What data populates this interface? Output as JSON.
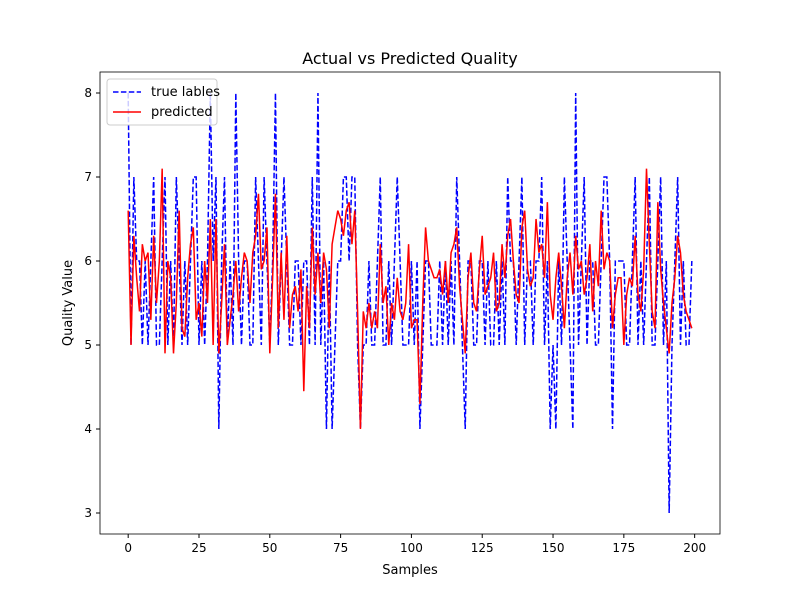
{
  "chart_data": {
    "type": "line",
    "title": "Actual vs Predicted Quality",
    "x_label": "Samples",
    "y_label": "Quality Value",
    "x": [
      0,
      1,
      2,
      3,
      4,
      5,
      6,
      7,
      8,
      9,
      10,
      11,
      12,
      13,
      14,
      15,
      16,
      17,
      18,
      19,
      20,
      21,
      22,
      23,
      24,
      25,
      26,
      27,
      28,
      29,
      30,
      31,
      32,
      33,
      34,
      35,
      36,
      37,
      38,
      39,
      40,
      41,
      42,
      43,
      44,
      45,
      46,
      47,
      48,
      49,
      50,
      51,
      52,
      53,
      54,
      55,
      56,
      57,
      58,
      59,
      60,
      61,
      62,
      63,
      64,
      65,
      66,
      67,
      68,
      69,
      70,
      71,
      72,
      73,
      74,
      75,
      76,
      77,
      78,
      79,
      80,
      81,
      82,
      83,
      84,
      85,
      86,
      87,
      88,
      89,
      90,
      91,
      92,
      93,
      94,
      95,
      96,
      97,
      98,
      99,
      100,
      101,
      102,
      103,
      104,
      105,
      106,
      107,
      108,
      109,
      110,
      111,
      112,
      113,
      114,
      115,
      116,
      117,
      118,
      119,
      120,
      121,
      122,
      123,
      124,
      125,
      126,
      127,
      128,
      129,
      130,
      131,
      132,
      133,
      134,
      135,
      136,
      137,
      138,
      139,
      140,
      141,
      142,
      143,
      144,
      145,
      146,
      147,
      148,
      149,
      150,
      151,
      152,
      153,
      154,
      155,
      156,
      157,
      158,
      159,
      160,
      161,
      162,
      163,
      164,
      165,
      166,
      167,
      168,
      169,
      170,
      171,
      172,
      173,
      174,
      175,
      176,
      177,
      178,
      179,
      180,
      181,
      182,
      183,
      184,
      185,
      186,
      187,
      188,
      189,
      190,
      191,
      192,
      193,
      194,
      195,
      196,
      197,
      198,
      199
    ],
    "series": [
      {
        "name": "true lables",
        "color": "#0000ff",
        "style": "dashed",
        "values": [
          8,
          5,
          7,
          6,
          6,
          5,
          6,
          5,
          6,
          7,
          5,
          5,
          6,
          7,
          5,
          6,
          5,
          7,
          6,
          5,
          6,
          5,
          6,
          7,
          7,
          5,
          6,
          5,
          6,
          8,
          6,
          7,
          4,
          6,
          7,
          5,
          6,
          5,
          8,
          6,
          5,
          6,
          6,
          5,
          5,
          7,
          6,
          5,
          7,
          6,
          5,
          6,
          8,
          5,
          6,
          7,
          6,
          5,
          5,
          6,
          6,
          5,
          6,
          6,
          5,
          7,
          5,
          8,
          5,
          6,
          4,
          6,
          4,
          5,
          6,
          6,
          7,
          7,
          6,
          7,
          7,
          5,
          4,
          5,
          5,
          6,
          5,
          5,
          6,
          7,
          5,
          5,
          6,
          5,
          6,
          7,
          6,
          5,
          5,
          5,
          6,
          5,
          6,
          4,
          5,
          6,
          6,
          5,
          5,
          5,
          6,
          5,
          6,
          5,
          6,
          5,
          7,
          6,
          5,
          4,
          6,
          6,
          5,
          5,
          6,
          6,
          5,
          6,
          5,
          5,
          6,
          5,
          6,
          5,
          7,
          6,
          6,
          5,
          6,
          7,
          5,
          6,
          6,
          5,
          6,
          6,
          7,
          5,
          6,
          4,
          5,
          4,
          6,
          5,
          7,
          6,
          5,
          4,
          8,
          5,
          6,
          7,
          5,
          6,
          6,
          5,
          5,
          6,
          7,
          7,
          6,
          4,
          6,
          6,
          6,
          6,
          5,
          5,
          6,
          7,
          5,
          6,
          5,
          6,
          7,
          5,
          5,
          6,
          7,
          5,
          6,
          3,
          5,
          6,
          7,
          5,
          6,
          5,
          5,
          6
        ]
      },
      {
        "name": "predicted",
        "color": "#ff0000",
        "style": "solid",
        "values": [
          6.6,
          5.0,
          6.3,
          5.8,
          5.4,
          6.2,
          6.0,
          6.1,
          5.3,
          6.3,
          5.5,
          6.0,
          7.1,
          4.9,
          6.0,
          5.8,
          4.9,
          5.5,
          6.6,
          5.2,
          5.1,
          5.8,
          6.2,
          6.4,
          5.3,
          5.5,
          5.1,
          6.0,
          5.5,
          6.5,
          5.0,
          6.5,
          4.9,
          5.5,
          6.2,
          5.0,
          5.3,
          5.6,
          6.0,
          5.4,
          5.8,
          6.1,
          6.0,
          5.5,
          6.1,
          6.3,
          6.8,
          5.9,
          6.0,
          6.4,
          4.9,
          5.8,
          6.8,
          5.2,
          6.1,
          5.3,
          6.3,
          5.2,
          5.6,
          5.7,
          5.4,
          5.9,
          4.45,
          5.7,
          5.2,
          6.4,
          5.6,
          6.1,
          5.5,
          6.1,
          5.9,
          5.2,
          6.2,
          6.4,
          6.6,
          6.5,
          6.3,
          6.6,
          6.7,
          6.2,
          6.6,
          5.4,
          4.0,
          5.4,
          5.2,
          5.5,
          5.2,
          5.4,
          5.2,
          6.2,
          5.5,
          5.7,
          5.0,
          5.5,
          5.3,
          5.8,
          5.4,
          5.3,
          5.5,
          6.2,
          5.2,
          5.3,
          5.3,
          4.3,
          5.5,
          6.4,
          6.0,
          5.9,
          5.8,
          5.8,
          5.9,
          5.6,
          6.0,
          5.5,
          6.1,
          6.2,
          6.4,
          5.7,
          5.3,
          4.9,
          5.8,
          6.1,
          5.5,
          5.4,
          5.9,
          6.3,
          5.6,
          5.7,
          5.8,
          6.1,
          5.4,
          5.5,
          6.2,
          5.8,
          6.3,
          6.5,
          6.0,
          5.6,
          5.5,
          6.4,
          6.6,
          5.9,
          5.7,
          5.8,
          6.5,
          6.1,
          6.2,
          5.8,
          6.7,
          5.6,
          5.3,
          5.8,
          6.1,
          5.7,
          5.2,
          5.8,
          6.1,
          5.6,
          6.3,
          5.9,
          6.0,
          5.6,
          5.8,
          6.2,
          5.4,
          6.0,
          5.7,
          6.6,
          5.9,
          6.1,
          6.0,
          5.2,
          5.6,
          5.8,
          5.8,
          5.0,
          5.6,
          5.8,
          5.7,
          6.3,
          5.6,
          5.4,
          5.9,
          7.1,
          6.2,
          5.4,
          5.2,
          6.7,
          5.9,
          5.5,
          5.2,
          4.9,
          5.5,
          5.8,
          6.3,
          6.1,
          5.6,
          5.4,
          5.3,
          5.2
        ]
      }
    ],
    "xlim": [
      -9.95,
      208.95
    ],
    "ylim": [
      2.75,
      8.25
    ],
    "xticks": [
      0,
      25,
      50,
      75,
      100,
      125,
      150,
      175,
      200
    ],
    "yticks": [
      3,
      4,
      5,
      6,
      7,
      8
    ],
    "legend": "upper left"
  }
}
